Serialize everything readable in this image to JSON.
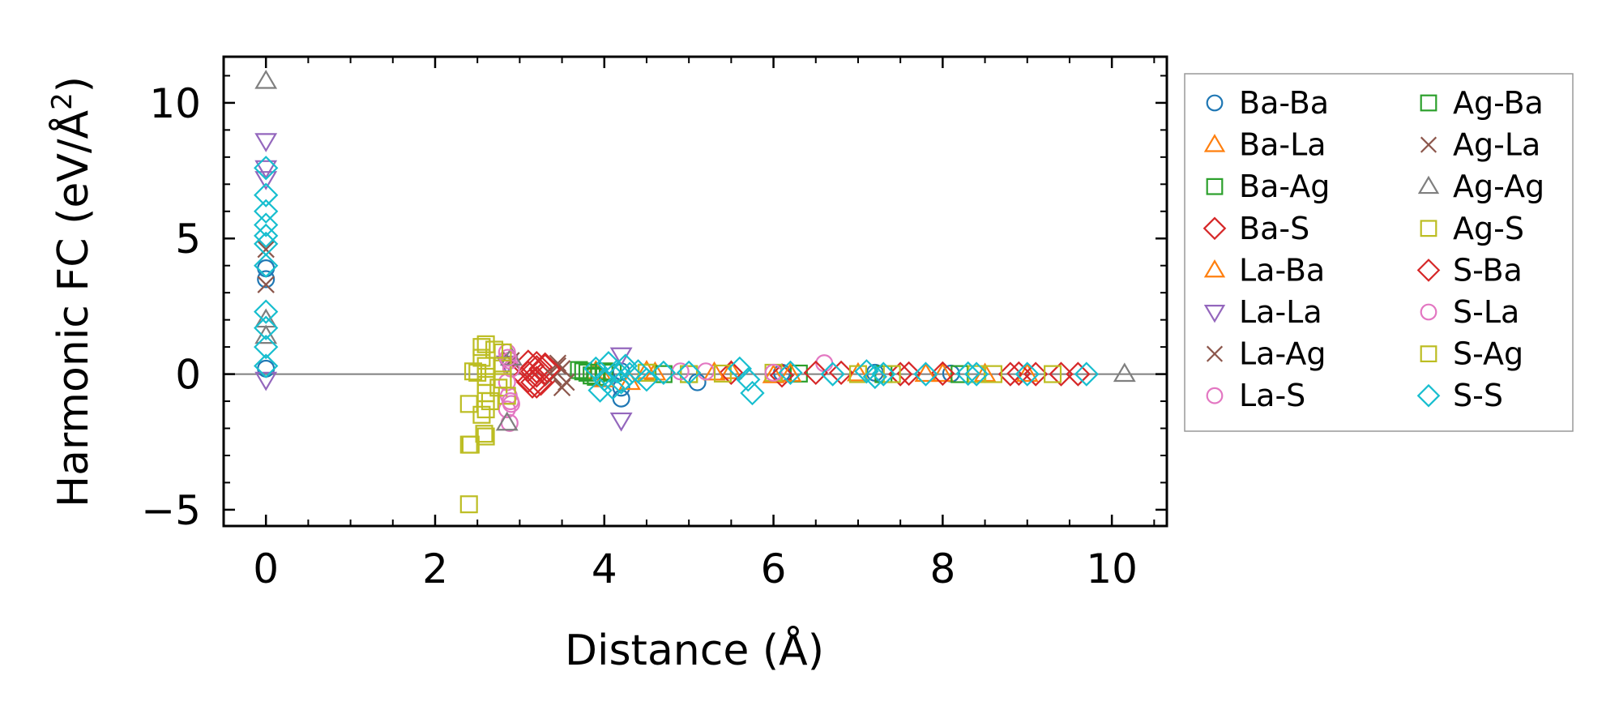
{
  "chart_data": {
    "type": "scatter",
    "title": "",
    "xlabel": "Distance (Å)",
    "ylabel_main": "Harmonic FC (eV/Å",
    "ylabel_sup": "2",
    "ylabel_close": ")",
    "xlim": [
      -0.5,
      10.65
    ],
    "ylim": [
      -5.6,
      11.7
    ],
    "xticks": [
      0,
      2,
      4,
      6,
      8,
      10
    ],
    "xtick_labels": [
      "0",
      "2",
      "4",
      "6",
      "8",
      "10"
    ],
    "yticks": [
      -5,
      0,
      5,
      10
    ],
    "ytick_labels": [
      "−5",
      "0",
      "5",
      "10"
    ],
    "grid": false,
    "zero_line": true,
    "legend_position": "outside-right",
    "series": [
      {
        "name": "Ba-Ba",
        "marker": "circle",
        "color": "#1f77b4",
        "x": [
          0,
          0,
          0,
          4.2,
          4.2,
          4.2,
          5.1,
          6.1,
          7.2,
          8.1
        ],
        "y": [
          3.9,
          3.5,
          0.2,
          -0.5,
          -0.9,
          0.1,
          -0.3,
          0.05,
          0.05,
          0.02
        ]
      },
      {
        "name": "Ba-La",
        "marker": "triangle-up",
        "color": "#ff7f0e",
        "x": [
          3.9,
          4.3,
          4.6,
          5.5,
          6.0,
          7.0,
          8.0,
          9.0
        ],
        "y": [
          0.1,
          -0.3,
          0.05,
          0.1,
          -0.05,
          0.02,
          0.0,
          0.0
        ]
      },
      {
        "name": "Ba-Ag",
        "marker": "square",
        "color": "#2ca02c",
        "x": [
          3.7,
          3.8,
          3.9,
          4.0,
          4.5,
          5.0,
          6.3,
          7.3,
          8.2
        ],
        "y": [
          0.15,
          0.05,
          -0.1,
          0.1,
          0.05,
          0.0,
          0.02,
          0.0,
          0.0
        ]
      },
      {
        "name": "Ba-S",
        "marker": "diamond",
        "color": "#d62728",
        "x": [
          3.1,
          3.15,
          3.2,
          3.25,
          3.3,
          3.1,
          3.2,
          5.5,
          6.1,
          6.8,
          7.5,
          8.0,
          8.9,
          9.1,
          9.4
        ],
        "y": [
          0.3,
          -0.3,
          0.1,
          -0.2,
          0.15,
          -0.1,
          0.25,
          0.05,
          -0.05,
          0.05,
          0.0,
          0.02,
          0.02,
          0.0,
          0.0
        ]
      },
      {
        "name": "La-Ba",
        "marker": "triangle-up",
        "color": "#ff7f0e",
        "x": [
          4.0,
          4.5,
          5.3,
          6.2,
          7.8,
          8.5
        ],
        "y": [
          -0.2,
          0.1,
          0.05,
          0.0,
          0.0,
          0.0
        ]
      },
      {
        "name": "La-La",
        "marker": "triangle-down",
        "color": "#9467bd",
        "x": [
          0,
          0,
          0,
          0,
          4.2,
          4.2,
          2.85
        ],
        "y": [
          8.6,
          7.6,
          7.2,
          -0.2,
          0.7,
          -1.7,
          0.4
        ]
      },
      {
        "name": "La-Ag",
        "marker": "x",
        "color": "#8c564b",
        "x": [
          3.45,
          3.5,
          3.55,
          3.4,
          0,
          0,
          2.9
        ],
        "y": [
          0.4,
          0.2,
          -0.3,
          -0.1,
          4.6,
          3.3,
          0.5
        ]
      },
      {
        "name": "La-S",
        "marker": "circle",
        "color": "#e377c2",
        "x": [
          2.85,
          2.88,
          2.9,
          2.85,
          2.87,
          2.9,
          2.85,
          2.88,
          6.6,
          5.2
        ],
        "y": [
          0.8,
          0.5,
          0.2,
          -0.3,
          -0.8,
          -1.1,
          -1.3,
          -1.8,
          0.4,
          0.1
        ]
      },
      {
        "name": "Ag-Ba",
        "marker": "square",
        "color": "#2ca02c",
        "x": [
          3.75,
          3.85,
          4.1,
          4.7
        ],
        "y": [
          0.1,
          -0.05,
          0.05,
          0.0
        ]
      },
      {
        "name": "Ag-La",
        "marker": "x",
        "color": "#8c564b",
        "x": [
          3.5,
          3.45
        ],
        "y": [
          -0.5,
          0.3
        ]
      },
      {
        "name": "Ag-Ag",
        "marker": "triangle-up",
        "color": "#7f7f7f",
        "x": [
          0,
          0,
          0,
          2.85,
          2.9,
          10.15
        ],
        "y": [
          10.8,
          2.0,
          1.4,
          -1.8,
          0.6,
          0.0
        ]
      },
      {
        "name": "Ag-S",
        "marker": "square",
        "color": "#bcbd22",
        "x": [
          2.4,
          2.4,
          2.4,
          2.45,
          2.55,
          2.55,
          2.6,
          2.6,
          2.6,
          2.6,
          2.65,
          2.6,
          2.55,
          2.6,
          2.6,
          2.8,
          2.8,
          2.8,
          2.75,
          2.85,
          5.0,
          6.0,
          7.0,
          8.4,
          9.3
        ],
        "y": [
          -4.8,
          -2.6,
          -1.1,
          0.1,
          1.0,
          0.6,
          0.3,
          -0.1,
          -0.4,
          -0.7,
          -1.0,
          -1.3,
          -1.5,
          -2.3,
          1.1,
          0.8,
          0.3,
          -0.2,
          -0.5,
          -0.8,
          0.0,
          0.05,
          0.0,
          0.0,
          0.0
        ]
      },
      {
        "name": "S-Ba",
        "marker": "diamond",
        "color": "#d62728",
        "x": [
          3.2,
          3.3,
          6.5,
          7.6,
          8.8,
          9.6
        ],
        "y": [
          -0.3,
          0.2,
          0.05,
          0.02,
          0.0,
          0.0
        ]
      },
      {
        "name": "S-La",
        "marker": "circle",
        "color": "#e377c2",
        "x": [
          2.86,
          2.89,
          4.9,
          6.0
        ],
        "y": [
          0.6,
          -1.0,
          0.1,
          0.05
        ]
      },
      {
        "name": "S-Ag",
        "marker": "square",
        "color": "#bcbd22",
        "x": [
          2.42,
          2.5,
          2.58,
          2.7,
          4.5,
          5.4,
          7.4,
          8.6
        ],
        "y": [
          -2.6,
          0.05,
          -2.2,
          0.9,
          0.05,
          0.02,
          0.0,
          0.0
        ]
      },
      {
        "name": "S-S",
        "marker": "diamond",
        "color": "#17becf",
        "x": [
          0,
          0,
          0,
          0,
          0,
          0,
          0,
          0,
          0,
          0,
          0,
          3.9,
          4.0,
          4.05,
          4.1,
          4.15,
          4.2,
          4.25,
          4.3,
          3.95,
          4.4,
          4.5,
          4.7,
          5.0,
          5.6,
          5.7,
          5.75,
          6.2,
          6.7,
          7.1,
          7.2,
          7.3,
          7.8,
          8.3,
          8.4,
          9.0,
          9.7
        ],
        "y": [
          7.6,
          6.6,
          6.0,
          5.5,
          5.1,
          4.8,
          4.0,
          2.3,
          1.7,
          1.0,
          0.3,
          0.2,
          -0.2,
          0.4,
          -0.5,
          0.1,
          -0.3,
          0.3,
          0.0,
          -0.6,
          0.1,
          -0.2,
          0.05,
          0.05,
          0.2,
          -0.2,
          -0.7,
          0.05,
          0.0,
          0.1,
          -0.1,
          0.0,
          0.0,
          0.02,
          0.0,
          0.0,
          0.0
        ]
      }
    ]
  }
}
